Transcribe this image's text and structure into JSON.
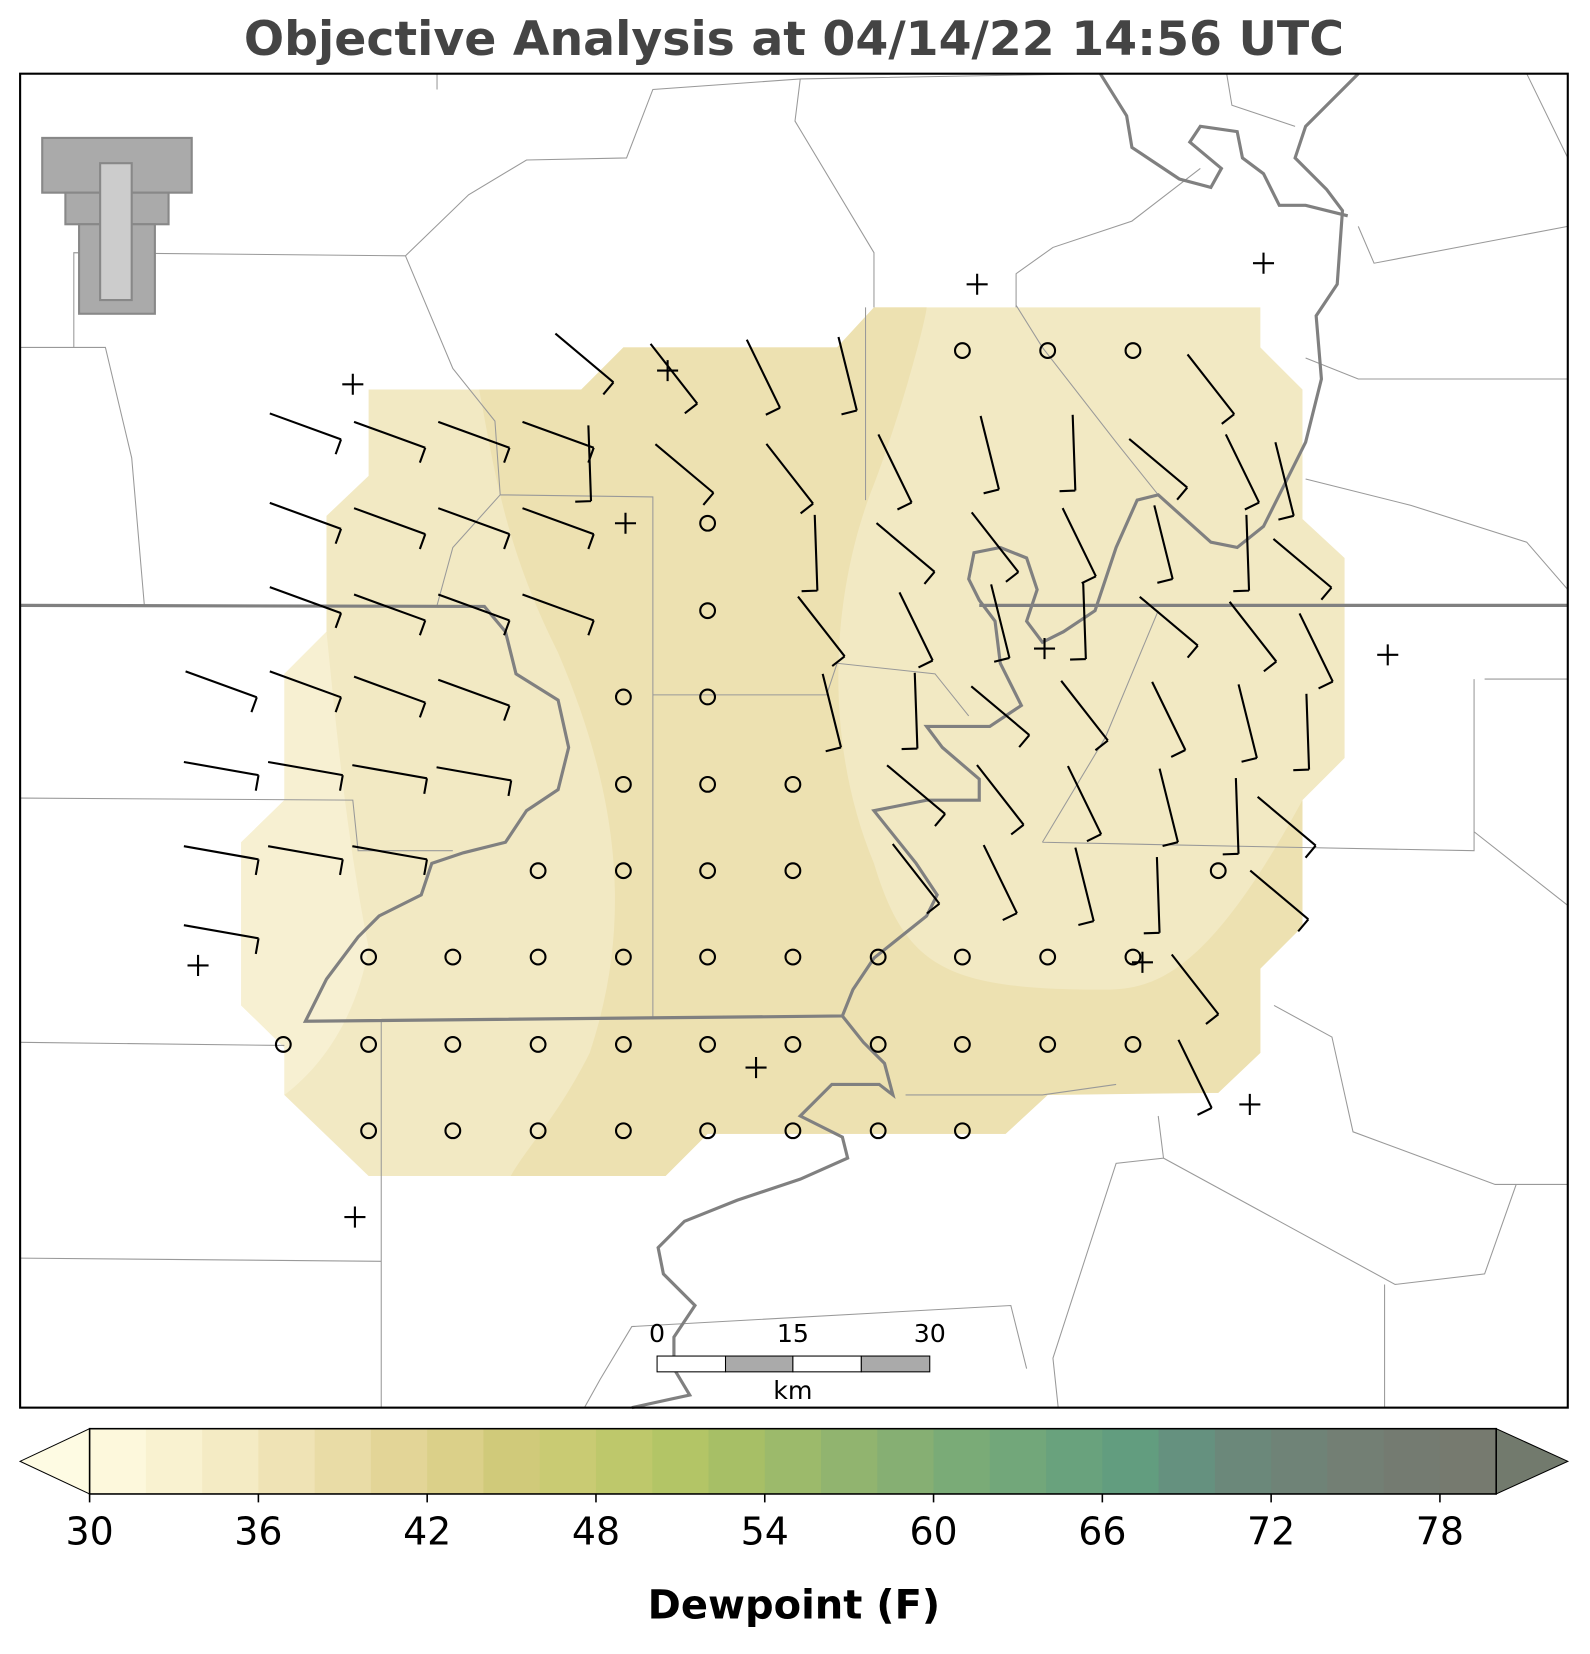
{
  "title": "Objective Analysis at 04/14/22 14:56 UTC",
  "scale_bar": {
    "ticks": [
      0,
      15,
      30
    ],
    "unit": "km"
  },
  "colorbar": {
    "label": "Dewpoint (F)",
    "lim": [
      30,
      80
    ],
    "ticks": [
      30,
      36,
      42,
      48,
      54,
      60,
      66,
      72,
      78
    ],
    "colors": [
      "#fdf8dc",
      "#f9f2d0",
      "#f4ebc4",
      "#efe3b5",
      "#e9dca6",
      "#e3d597",
      "#dbd089",
      "#d0ca7a",
      "#c9cb73",
      "#bec86b",
      "#b3c566",
      "#a7bf66",
      "#9cba6b",
      "#91b46f",
      "#86af73",
      "#7aab77",
      "#72a77a",
      "#69a27d",
      "#629d7f",
      "#65917f",
      "#6b887a",
      "#6f8377",
      "#737f74",
      "#747b71",
      "#767a6f"
    ],
    "under_color": "#fefbe3",
    "over_color": "#727a6d"
  }
}
